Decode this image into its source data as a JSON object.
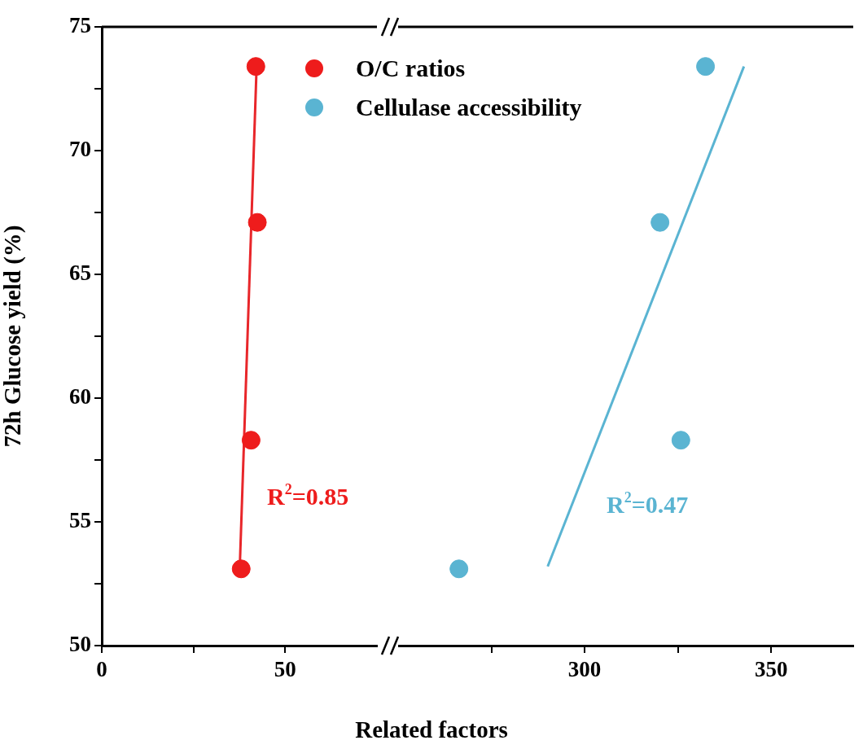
{
  "chart_data": [
    {
      "type": "scatter",
      "xlabel": "Related factors",
      "ylabel": "72h Glucose yield (%)",
      "xlim": [
        0,
        75
      ],
      "ylim": [
        50,
        75
      ],
      "xticks": [
        0,
        {
          "value": 25,
          "label": null
        },
        50
      ],
      "yticks": [
        50,
        {
          "value": 52.5,
          "label": null
        },
        55,
        {
          "value": 57.5,
          "label": null
        },
        60,
        {
          "value": 62.5,
          "label": null
        },
        65,
        {
          "value": 67.5,
          "label": null
        },
        70,
        {
          "value": 72.5,
          "label": null
        },
        75
      ],
      "grid": false,
      "legend": "top right",
      "series": [
        {
          "name": "O/C ratios",
          "type": "scatter",
          "marker": "circle",
          "color": "#ee1c1c",
          "x": [
            38.0,
            40.7,
            42.4,
            42.0
          ],
          "values": [
            53.1,
            58.3,
            67.1,
            73.4
          ]
        },
        {
          "type": "line",
          "color": "#e8262a",
          "x": [
            37.6,
            42.2
          ],
          "values": [
            53.1,
            73.4
          ]
        }
      ],
      "annotations": [
        "R$^{2}$=0.85"
      ]
    },
    {
      "type": "scatter",
      "xlim": [
        250,
        372
      ],
      "ylim": [
        50,
        75
      ],
      "tick_labels": "x",
      "xticks": [
        {
          "value": 275,
          "label": null
        },
        300,
        {
          "value": 325,
          "label": null
        },
        350
      ],
      "grid": false,
      "legend": "top left",
      "series": [
        {
          "name": "Cellulase accessibility",
          "type": "scatter",
          "marker": "circle",
          "color": "#5ab4d2",
          "x": [
            266.3,
            325.8,
            320.2,
            332.4
          ],
          "values": [
            53.1,
            58.3,
            67.1,
            73.4
          ]
        },
        {
          "type": "line",
          "color": "#5ab4d2",
          "x": [
            290.1,
            342.7
          ],
          "values": [
            53.2,
            73.4
          ]
        }
      ],
      "annotations": [
        "R$^{2}$=0.47"
      ]
    }
  ]
}
